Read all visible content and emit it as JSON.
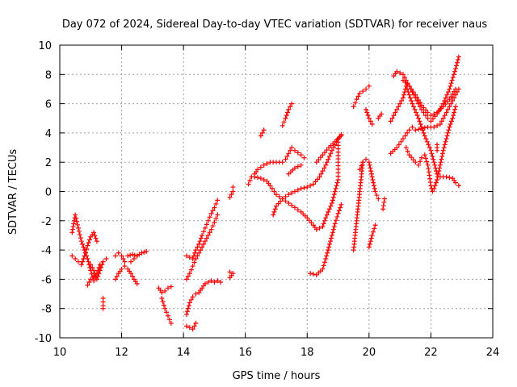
{
  "chart_data": {
    "type": "scatter",
    "title": "Day 072 of 2024, Sidereal Day-to-day VTEC variation (SDTVAR) for receiver naus",
    "xlabel": "GPS time / hours",
    "ylabel": "SDTVAR / TECUs",
    "xlim": [
      10,
      24
    ],
    "ylim": [
      -10,
      10
    ],
    "xticks": [
      10,
      12,
      14,
      16,
      18,
      20,
      22,
      24
    ],
    "yticks": [
      -10,
      -8,
      -6,
      -4,
      -2,
      0,
      2,
      4,
      6,
      8,
      10
    ],
    "grid": true,
    "marker": "+",
    "color": "#ff0000",
    "tracks": [
      {
        "name": "a",
        "points": [
          [
            10.4,
            -2.8
          ],
          [
            10.5,
            -1.6
          ],
          [
            10.6,
            -2.5
          ],
          [
            10.7,
            -3.4
          ],
          [
            10.8,
            -4.0
          ],
          [
            10.9,
            -4.6
          ],
          [
            11.0,
            -5.4
          ],
          [
            11.1,
            -6.1
          ],
          [
            11.2,
            -5.6
          ],
          [
            11.3,
            -5.0
          ]
        ]
      },
      {
        "name": "b",
        "points": [
          [
            10.4,
            -4.4
          ],
          [
            10.5,
            -4.6
          ],
          [
            10.6,
            -4.8
          ],
          [
            10.7,
            -5.0
          ],
          [
            10.8,
            -4.4
          ],
          [
            10.9,
            -3.7
          ],
          [
            11.0,
            -3.1
          ],
          [
            11.1,
            -2.8
          ],
          [
            11.2,
            -3.4
          ]
        ]
      },
      {
        "name": "c",
        "points": [
          [
            11.0,
            -5.0
          ],
          [
            11.1,
            -5.4
          ],
          [
            11.2,
            -6.0
          ],
          [
            11.3,
            -5.4
          ],
          [
            11.4,
            -4.8
          ],
          [
            11.5,
            -4.6
          ]
        ]
      },
      {
        "name": "d",
        "points": [
          [
            10.9,
            -6.4
          ],
          [
            11.0,
            -6.0
          ],
          [
            11.1,
            -5.8
          ]
        ]
      },
      {
        "name": "e",
        "points": [
          [
            11.4,
            -7.3
          ],
          [
            11.4,
            -7.8
          ],
          [
            11.4,
            -8.0
          ]
        ]
      },
      {
        "name": "f",
        "points": [
          [
            11.8,
            -4.4
          ],
          [
            11.9,
            -4.2
          ],
          [
            12.0,
            -4.4
          ],
          [
            12.1,
            -4.8
          ]
        ]
      },
      {
        "name": "g",
        "points": [
          [
            11.8,
            -6.0
          ],
          [
            11.9,
            -5.6
          ],
          [
            12.0,
            -5.3
          ],
          [
            12.1,
            -5.1
          ],
          [
            12.2,
            -5.3
          ],
          [
            12.3,
            -5.6
          ],
          [
            12.4,
            -6.0
          ],
          [
            12.5,
            -6.3
          ]
        ]
      },
      {
        "name": "h",
        "points": [
          [
            12.2,
            -4.4
          ],
          [
            12.35,
            -4.3
          ],
          [
            12.5,
            -4.4
          ],
          [
            12.65,
            -4.2
          ],
          [
            12.8,
            -4.1
          ]
        ]
      },
      {
        "name": "i",
        "points": [
          [
            12.3,
            -4.8
          ],
          [
            12.4,
            -4.6
          ],
          [
            12.5,
            -4.4
          ]
        ]
      },
      {
        "name": "j",
        "points": [
          [
            13.2,
            -6.6
          ],
          [
            13.3,
            -6.9
          ],
          [
            13.4,
            -6.8
          ],
          [
            13.5,
            -6.6
          ],
          [
            13.6,
            -6.5
          ]
        ]
      },
      {
        "name": "k",
        "points": [
          [
            13.3,
            -7.3
          ],
          [
            13.4,
            -8.0
          ],
          [
            13.5,
            -8.5
          ],
          [
            13.6,
            -9.0
          ]
        ]
      },
      {
        "name": "l",
        "points": [
          [
            14.1,
            -4.4
          ],
          [
            14.2,
            -4.5
          ],
          [
            14.3,
            -4.6
          ],
          [
            14.4,
            -4.0
          ],
          [
            14.5,
            -3.6
          ],
          [
            14.6,
            -3.0
          ],
          [
            14.7,
            -2.5
          ],
          [
            14.8,
            -2.0
          ],
          [
            14.9,
            -1.5
          ],
          [
            15.0,
            -1.1
          ],
          [
            15.1,
            -0.6
          ]
        ]
      },
      {
        "name": "m",
        "points": [
          [
            14.1,
            -6.0
          ],
          [
            14.2,
            -5.6
          ],
          [
            14.3,
            -5.1
          ],
          [
            14.4,
            -4.6
          ],
          [
            14.5,
            -4.2
          ],
          [
            14.6,
            -3.8
          ],
          [
            14.7,
            -3.4
          ],
          [
            14.8,
            -3.0
          ],
          [
            14.9,
            -2.6
          ],
          [
            15.0,
            -2.1
          ],
          [
            15.1,
            -1.6
          ]
        ]
      },
      {
        "name": "n",
        "points": [
          [
            14.1,
            -8.4
          ],
          [
            14.2,
            -7.6
          ],
          [
            14.3,
            -7.2
          ],
          [
            14.4,
            -7.0
          ],
          [
            14.5,
            -6.9
          ],
          [
            14.6,
            -6.6
          ],
          [
            14.7,
            -6.3
          ],
          [
            14.8,
            -6.2
          ],
          [
            14.9,
            -6.1
          ],
          [
            15.0,
            -6.2
          ],
          [
            15.1,
            -6.1
          ],
          [
            15.2,
            -6.2
          ]
        ]
      },
      {
        "name": "o",
        "points": [
          [
            14.1,
            -9.2
          ],
          [
            14.2,
            -9.3
          ],
          [
            14.3,
            -9.4
          ],
          [
            14.4,
            -9.0
          ]
        ]
      },
      {
        "name": "p",
        "points": [
          [
            15.5,
            -5.9
          ],
          [
            15.6,
            -5.6
          ],
          [
            15.5,
            -5.5
          ]
        ]
      },
      {
        "name": "q",
        "points": [
          [
            15.5,
            -0.4
          ],
          [
            15.6,
            0.0
          ],
          [
            15.6,
            0.3
          ]
        ]
      },
      {
        "name": "r",
        "points": [
          [
            16.1,
            0.5
          ],
          [
            16.2,
            1.0
          ],
          [
            16.3,
            1.2
          ],
          [
            16.4,
            1.5
          ],
          [
            16.6,
            1.8
          ],
          [
            16.8,
            2.0
          ],
          [
            17.0,
            2.0
          ],
          [
            17.2,
            2.0
          ],
          [
            17.3,
            2.2
          ],
          [
            17.4,
            2.6
          ],
          [
            17.5,
            3.0
          ],
          [
            17.6,
            2.8
          ],
          [
            17.8,
            2.5
          ],
          [
            17.9,
            2.3
          ]
        ]
      },
      {
        "name": "s",
        "points": [
          [
            16.3,
            1.0
          ],
          [
            16.5,
            0.9
          ],
          [
            16.6,
            0.8
          ],
          [
            16.7,
            0.7
          ],
          [
            16.8,
            0.4
          ],
          [
            17.0,
            -0.2
          ],
          [
            17.2,
            -0.5
          ],
          [
            17.4,
            -0.8
          ],
          [
            17.6,
            -1.1
          ],
          [
            17.8,
            -1.4
          ],
          [
            18.0,
            -1.8
          ],
          [
            18.2,
            -2.3
          ],
          [
            18.3,
            -2.6
          ],
          [
            18.5,
            -2.4
          ],
          [
            18.6,
            -1.8
          ],
          [
            18.8,
            -0.8
          ],
          [
            18.9,
            0.0
          ],
          [
            19.0,
            0.8
          ],
          [
            19.0,
            2.0
          ],
          [
            19.0,
            3.6
          ]
        ]
      },
      {
        "name": "t",
        "points": [
          [
            16.5,
            3.8
          ],
          [
            16.6,
            4.2
          ]
        ]
      },
      {
        "name": "u",
        "points": [
          [
            17.2,
            4.5
          ],
          [
            17.3,
            5.0
          ],
          [
            17.4,
            5.6
          ],
          [
            17.5,
            6.0
          ]
        ]
      },
      {
        "name": "v",
        "points": [
          [
            16.9,
            -1.6
          ],
          [
            17.0,
            -1.0
          ],
          [
            17.2,
            -0.5
          ],
          [
            17.4,
            -0.2
          ],
          [
            17.6,
            0.0
          ],
          [
            17.8,
            0.2
          ],
          [
            18.0,
            0.3
          ],
          [
            18.2,
            0.5
          ],
          [
            18.4,
            1.0
          ],
          [
            18.6,
            1.8
          ],
          [
            18.8,
            2.8
          ],
          [
            19.0,
            3.6
          ],
          [
            19.1,
            3.9
          ]
        ]
      },
      {
        "name": "w",
        "points": [
          [
            17.4,
            1.2
          ],
          [
            17.6,
            1.6
          ],
          [
            17.8,
            1.8
          ]
        ]
      },
      {
        "name": "x",
        "points": [
          [
            18.1,
            -5.6
          ],
          [
            18.3,
            -5.7
          ],
          [
            18.5,
            -5.3
          ],
          [
            18.6,
            -4.6
          ],
          [
            18.7,
            -3.8
          ],
          [
            18.8,
            -3.0
          ],
          [
            18.9,
            -2.2
          ],
          [
            19.0,
            -1.5
          ],
          [
            19.1,
            -0.9
          ]
        ]
      },
      {
        "name": "y",
        "points": [
          [
            18.3,
            2.0
          ],
          [
            18.5,
            2.5
          ],
          [
            18.7,
            3.0
          ],
          [
            18.9,
            3.4
          ],
          [
            19.1,
            3.8
          ]
        ]
      },
      {
        "name": "z",
        "points": [
          [
            19.5,
            -4.0
          ],
          [
            19.55,
            -3.0
          ],
          [
            19.6,
            -2.0
          ],
          [
            19.65,
            -1.0
          ],
          [
            19.7,
            0.0
          ],
          [
            19.75,
            1.0
          ],
          [
            19.8,
            2.0
          ]
        ]
      },
      {
        "name": "aa",
        "points": [
          [
            19.5,
            5.8
          ],
          [
            19.6,
            6.3
          ],
          [
            19.7,
            6.7
          ],
          [
            19.9,
            7.0
          ],
          [
            20.0,
            7.2
          ]
        ]
      },
      {
        "name": "ab",
        "points": [
          [
            19.7,
            1.5
          ],
          [
            19.8,
            2.0
          ],
          [
            19.9,
            2.2
          ]
        ]
      },
      {
        "name": "ac",
        "points": [
          [
            19.9,
            5.6
          ],
          [
            20.0,
            5.0
          ],
          [
            20.1,
            4.6
          ]
        ]
      },
      {
        "name": "ad",
        "points": [
          [
            20.0,
            2.0
          ],
          [
            20.1,
            1.0
          ],
          [
            20.2,
            0.0
          ],
          [
            20.3,
            -0.5
          ]
        ]
      },
      {
        "name": "ae",
        "points": [
          [
            20.0,
            -3.8
          ],
          [
            20.1,
            -3.0
          ],
          [
            20.2,
            -2.3
          ]
        ]
      },
      {
        "name": "af",
        "points": [
          [
            20.3,
            5.0
          ],
          [
            20.4,
            5.3
          ]
        ]
      },
      {
        "name": "ag",
        "points": [
          [
            20.5,
            -0.5
          ],
          [
            20.45,
            -1.2
          ]
        ]
      },
      {
        "name": "ah",
        "points": [
          [
            20.7,
            2.6
          ],
          [
            20.9,
            3.0
          ],
          [
            21.1,
            3.6
          ],
          [
            21.3,
            4.2
          ],
          [
            21.4,
            4.4
          ]
        ]
      },
      {
        "name": "ai",
        "points": [
          [
            20.8,
            7.9
          ],
          [
            20.9,
            8.2
          ],
          [
            21.1,
            8.0
          ],
          [
            21.3,
            7.2
          ],
          [
            21.5,
            6.4
          ],
          [
            21.7,
            5.6
          ],
          [
            21.9,
            5.0
          ],
          [
            22.0,
            4.8
          ],
          [
            22.2,
            5.3
          ],
          [
            22.4,
            6.0
          ],
          [
            22.6,
            7.0
          ],
          [
            22.8,
            8.4
          ],
          [
            22.9,
            9.2
          ]
        ]
      },
      {
        "name": "aj",
        "points": [
          [
            20.7,
            4.8
          ],
          [
            20.9,
            5.6
          ],
          [
            21.1,
            6.4
          ],
          [
            21.2,
            7.2
          ],
          [
            21.4,
            6.0
          ],
          [
            21.6,
            5.0
          ],
          [
            21.8,
            3.8
          ],
          [
            22.0,
            2.8
          ],
          [
            22.1,
            2.0
          ],
          [
            22.2,
            1.2
          ],
          [
            22.3,
            1.0
          ],
          [
            22.5,
            1.0
          ],
          [
            22.7,
            0.9
          ],
          [
            22.8,
            0.6
          ],
          [
            22.9,
            0.4
          ]
        ]
      },
      {
        "name": "ak",
        "points": [
          [
            21.2,
            3.0
          ],
          [
            21.3,
            2.5
          ],
          [
            21.5,
            2.0
          ],
          [
            21.6,
            1.8
          ],
          [
            21.7,
            2.3
          ],
          [
            21.8,
            2.5
          ],
          [
            21.9,
            1.8
          ],
          [
            22.0,
            0.4
          ],
          [
            22.05,
            0.0
          ]
        ]
      },
      {
        "name": "al",
        "points": [
          [
            21.1,
            7.6
          ],
          [
            21.3,
            7.2
          ],
          [
            21.5,
            6.6
          ],
          [
            21.7,
            5.9
          ],
          [
            21.9,
            5.4
          ],
          [
            22.0,
            5.2
          ],
          [
            22.2,
            5.4
          ],
          [
            22.4,
            5.8
          ],
          [
            22.6,
            6.3
          ],
          [
            22.8,
            7.0
          ]
        ]
      },
      {
        "name": "am",
        "points": [
          [
            21.5,
            4.2
          ],
          [
            21.7,
            4.3
          ],
          [
            21.9,
            4.4
          ],
          [
            22.1,
            4.4
          ],
          [
            22.3,
            4.6
          ],
          [
            22.5,
            5.4
          ],
          [
            22.7,
            6.2
          ],
          [
            22.9,
            7.0
          ]
        ]
      },
      {
        "name": "an",
        "points": [
          [
            22.1,
            0.2
          ],
          [
            22.2,
            0.8
          ],
          [
            22.3,
            1.8
          ],
          [
            22.4,
            2.8
          ],
          [
            22.5,
            3.6
          ],
          [
            22.6,
            4.4
          ],
          [
            22.7,
            5.0
          ],
          [
            22.8,
            5.8
          ]
        ]
      },
      {
        "name": "ao",
        "points": [
          [
            22.2,
            2.8
          ],
          [
            22.2,
            3.2
          ]
        ]
      }
    ]
  }
}
